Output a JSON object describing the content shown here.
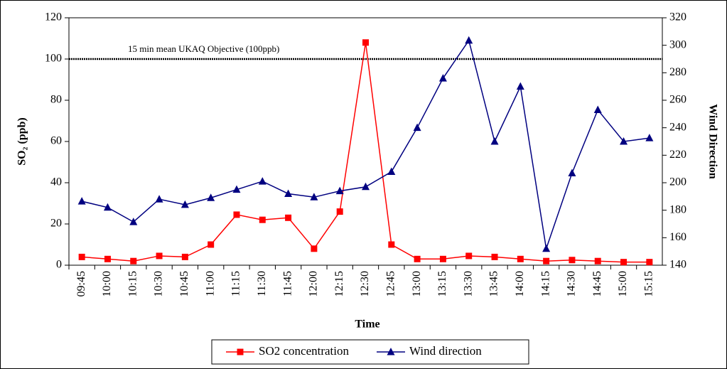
{
  "chart_data": {
    "type": "line",
    "x_label": "Time",
    "y_label": "SO₂ (ppb)",
    "y2_label": "Wind Direction",
    "categories": [
      "09:45",
      "10:00",
      "10:15",
      "10:30",
      "10:45",
      "11:00",
      "11:15",
      "11:30",
      "11:45",
      "12:00",
      "12:15",
      "12:30",
      "12:45",
      "13:00",
      "13:15",
      "13:30",
      "13:45",
      "14:00",
      "14:15",
      "14:30",
      "14:45",
      "15:00",
      "15:15"
    ],
    "series": [
      {
        "name": "SO2 concentration",
        "color": "#ff0000",
        "marker": "square",
        "axis": "y",
        "values": [
          4,
          3,
          2,
          4.5,
          4,
          10,
          24.5,
          22,
          23,
          8,
          26,
          108,
          10,
          3,
          3,
          4.5,
          4,
          3,
          2,
          2.5,
          2,
          1.5,
          1.5
        ]
      },
      {
        "name": "Wind direction",
        "color": "#000080",
        "marker": "triangle",
        "axis": "y2",
        "values": [
          186.5,
          182,
          171.5,
          188,
          184,
          189,
          195,
          201,
          192,
          189.5,
          194,
          197,
          208,
          240,
          276,
          303.5,
          230,
          270,
          152,
          207,
          253,
          230,
          232.5
        ]
      }
    ],
    "reference_line": {
      "label": "15 min mean UKAQ Objective (100ppb)",
      "value": 100
    },
    "ylim": [
      0,
      120
    ],
    "yticks": [
      0,
      20,
      40,
      60,
      80,
      100,
      120
    ],
    "y2lim": [
      140,
      320
    ],
    "y2ticks": [
      140,
      160,
      180,
      200,
      220,
      240,
      260,
      280,
      300,
      320
    ],
    "grid": false,
    "legend": "bottom"
  }
}
